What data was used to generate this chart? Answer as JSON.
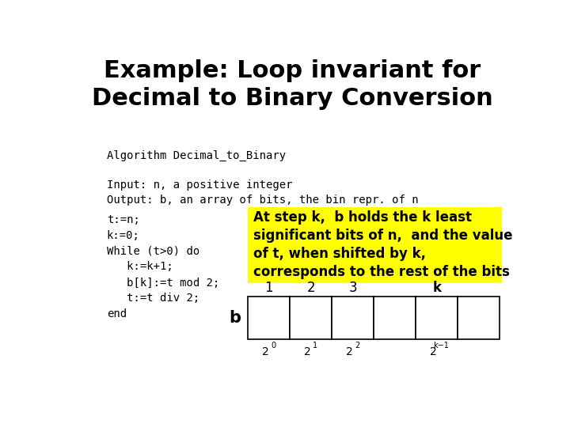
{
  "title_line1": "Example: Loop invariant for",
  "title_line2": "Decimal to Binary Conversion",
  "title_fontsize": 22,
  "algo_label": "Algorithm Decimal_to_Binary",
  "input_label": "Input: n, a positive integer",
  "output_label": "Output: b, an array of bits, the bin repr. of n",
  "code_lines": [
    "t:=n;",
    "k:=0;",
    "While (t>0) do",
    "   k:=k+1;",
    "   b[k]:=t mod 2;",
    "   t:=t div 2;",
    "end"
  ],
  "invariant_text": "At step k,  b holds the k least\nsignificant bits of n,  and the value\nof t, when shifted by k,\ncorresponds to the rest of the bits",
  "invariant_bg": "#FFFF00",
  "invariant_fontsize": 12,
  "bg_color": "#FFFFFF",
  "mono_fontsize": 10,
  "b_label": "b",
  "col_labels": [
    "1",
    "2",
    "3",
    "k"
  ],
  "num_cols": 6
}
